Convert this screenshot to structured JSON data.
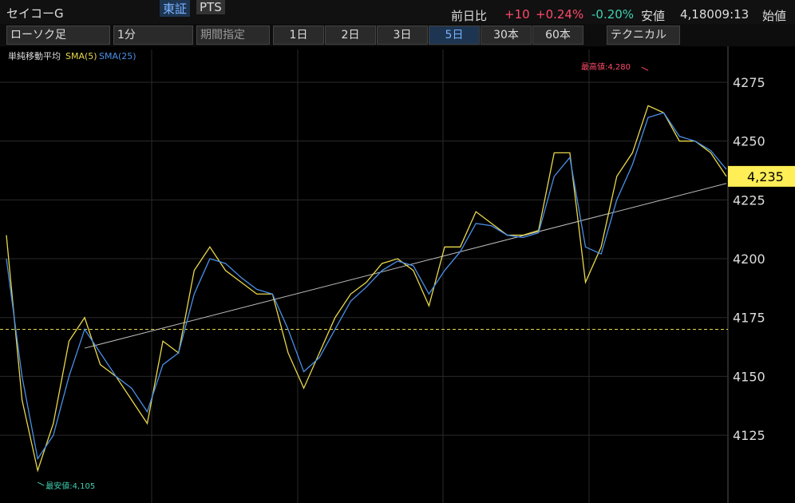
{
  "header": {
    "name": "セイコーG",
    "markets": [
      "東証",
      "PTS"
    ],
    "change_label": "前日比",
    "change": "+10",
    "change_pct": "+0.24%",
    "other_pct": "-0.20%",
    "low_label": "安値",
    "low": "4,180",
    "time": "09:13",
    "open_label": "始値"
  },
  "toolbar": {
    "chart_type": "ローソク足",
    "interval": "1分",
    "period": "期間指定",
    "ranges": [
      "1日",
      "2日",
      "3日",
      "5日",
      "30本",
      "60本"
    ],
    "technical": "テクニカル"
  },
  "chart_data": {
    "type": "line",
    "indicator": "単純移動平均",
    "categories": [
      null,
      null,
      null,
      null,
      null,
      null,
      null,
      null,
      null,
      null,
      null,
      null,
      null,
      null,
      null,
      null,
      null,
      null,
      null,
      null,
      null,
      null,
      null,
      null,
      null,
      null,
      null,
      null,
      null,
      null,
      null,
      null,
      null,
      null,
      null,
      null,
      null,
      null,
      null,
      null,
      null,
      null,
      null,
      null,
      null,
      null,
      null
    ],
    "series": [
      {
        "name": "SMA(5)",
        "color": "#e8d84a",
        "values": [
          4210,
          4140,
          4110,
          4130,
          4165,
          4175,
          4155,
          4150,
          4140,
          4130,
          4165,
          4160,
          4195,
          4205,
          4195,
          4190,
          4185,
          4185,
          4160,
          4145,
          4160,
          4175,
          4185,
          4190,
          4198,
          4200,
          4195,
          4180,
          4205,
          4205,
          4220,
          4215,
          4210,
          4210,
          4212,
          4245,
          4245,
          4190,
          4205,
          4235,
          4245,
          4265,
          4262,
          4250,
          4250,
          4245,
          4235
        ]
      },
      {
        "name": "SMA(25)",
        "color": "#4a8fe8",
        "values": [
          4200,
          4150,
          4115,
          4125,
          4150,
          4170,
          4160,
          4150,
          4145,
          4135,
          4155,
          4160,
          4185,
          4200,
          4198,
          4192,
          4187,
          4185,
          4170,
          4152,
          4158,
          4170,
          4182,
          4188,
          4195,
          4199,
          4197,
          4185,
          4195,
          4203,
          4215,
          4214,
          4210,
          4209,
          4211,
          4235,
          4243,
          4205,
          4202,
          4225,
          4240,
          4260,
          4262,
          4252,
          4250,
          4246,
          4238
        ]
      }
    ],
    "ylim": [
      4099.6,
      4288.9
    ],
    "yticks": [
      4125,
      4150,
      4175,
      4200,
      4225,
      4250,
      4275
    ],
    "reference_line": 4170,
    "trendline": [
      4162,
      4232
    ],
    "last_price": {
      "value": 4235,
      "label": "4,235"
    },
    "high": {
      "value": 4280,
      "label": "最高値:4,280"
    },
    "low": {
      "value": 4105,
      "label": "最安値:4,105"
    }
  }
}
